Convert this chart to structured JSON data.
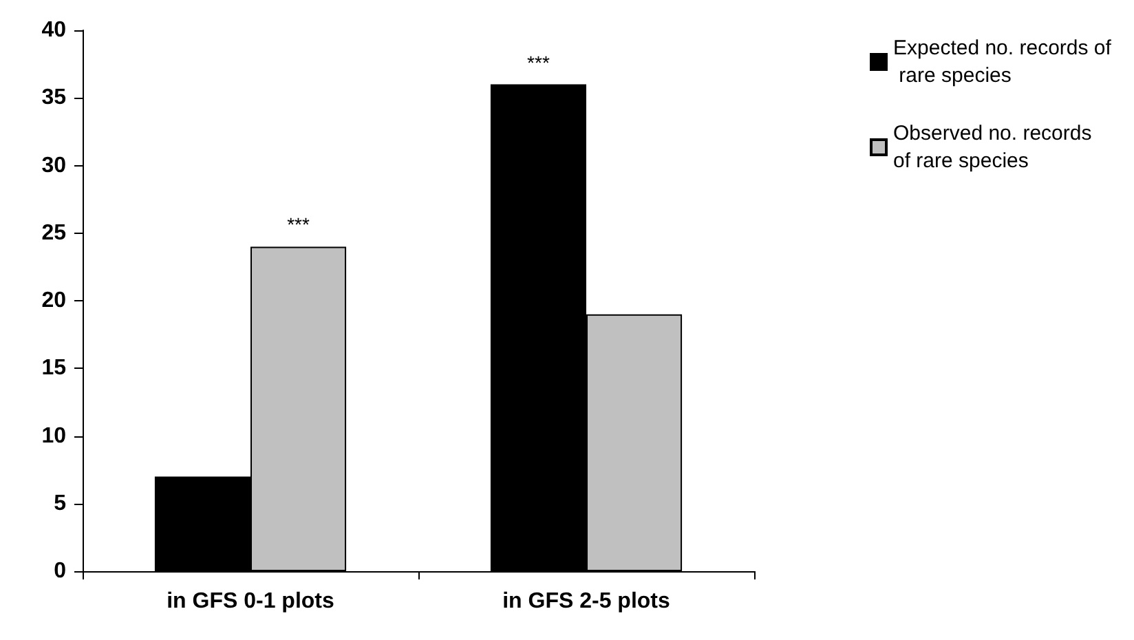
{
  "chart_data": {
    "type": "bar",
    "categories": [
      "in GFS 0-1 plots",
      "in GFS 2-5 plots"
    ],
    "series": [
      {
        "name": "Expected no. records of rare species",
        "color": "#000000",
        "values": [
          7,
          36
        ]
      },
      {
        "name": "Observed no. records of rare species",
        "color": "#c0c0c0",
        "values": [
          24,
          19
        ]
      }
    ],
    "ylim": [
      0,
      40
    ],
    "yticks": [
      0,
      5,
      10,
      15,
      20,
      25,
      30,
      35,
      40
    ],
    "grid": false,
    "legend": "right",
    "annotations": [
      {
        "text": "***",
        "x": "in GFS 0-1 plots",
        "y": 24
      },
      {
        "text": "***",
        "x": "in GFS 2-5 plots",
        "y": 36
      }
    ]
  }
}
